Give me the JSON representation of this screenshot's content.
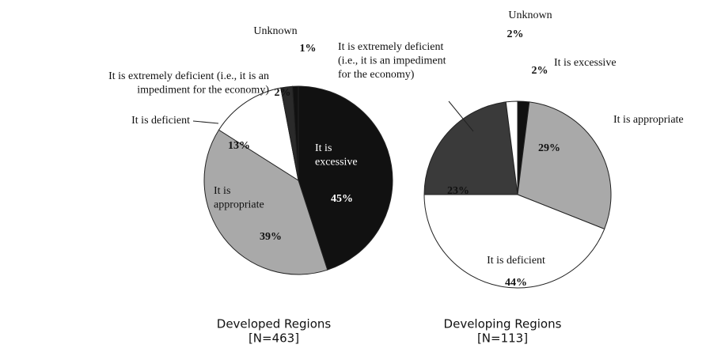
{
  "chart_data": [
    {
      "type": "pie",
      "title": "Developed Regions",
      "subtitle": "[N=463]",
      "categories": [
        "It is\nexcessive",
        "It is\nappropriate",
        "It is deficient",
        "It is extremely deficient (i.e., it is an\nimpediment for the economy)",
        "Unknown"
      ],
      "values": [
        45,
        39,
        13,
        2,
        1
      ],
      "value_labels": [
        "45%",
        "39%",
        "13%",
        "2%",
        "1%"
      ],
      "colors": [
        "#111111",
        "#a9a9a9",
        "#ffffff",
        "#2a2a2a",
        "#111111"
      ]
    },
    {
      "type": "pie",
      "title": "Developing Regions",
      "subtitle": "[N=113]",
      "categories": [
        "It is excessive",
        "It is appropriate",
        "It is deficient",
        "It is extremely deficient\n(i.e., it is an impediment\nfor the economy)",
        "Unknown"
      ],
      "values": [
        2,
        29,
        44,
        23,
        2
      ],
      "value_labels": [
        "2%",
        "29%",
        "44%",
        "23%",
        "2%"
      ],
      "colors": [
        "#111111",
        "#a9a9a9",
        "#ffffff",
        "#3a3a3a",
        "#ffffff"
      ]
    }
  ]
}
